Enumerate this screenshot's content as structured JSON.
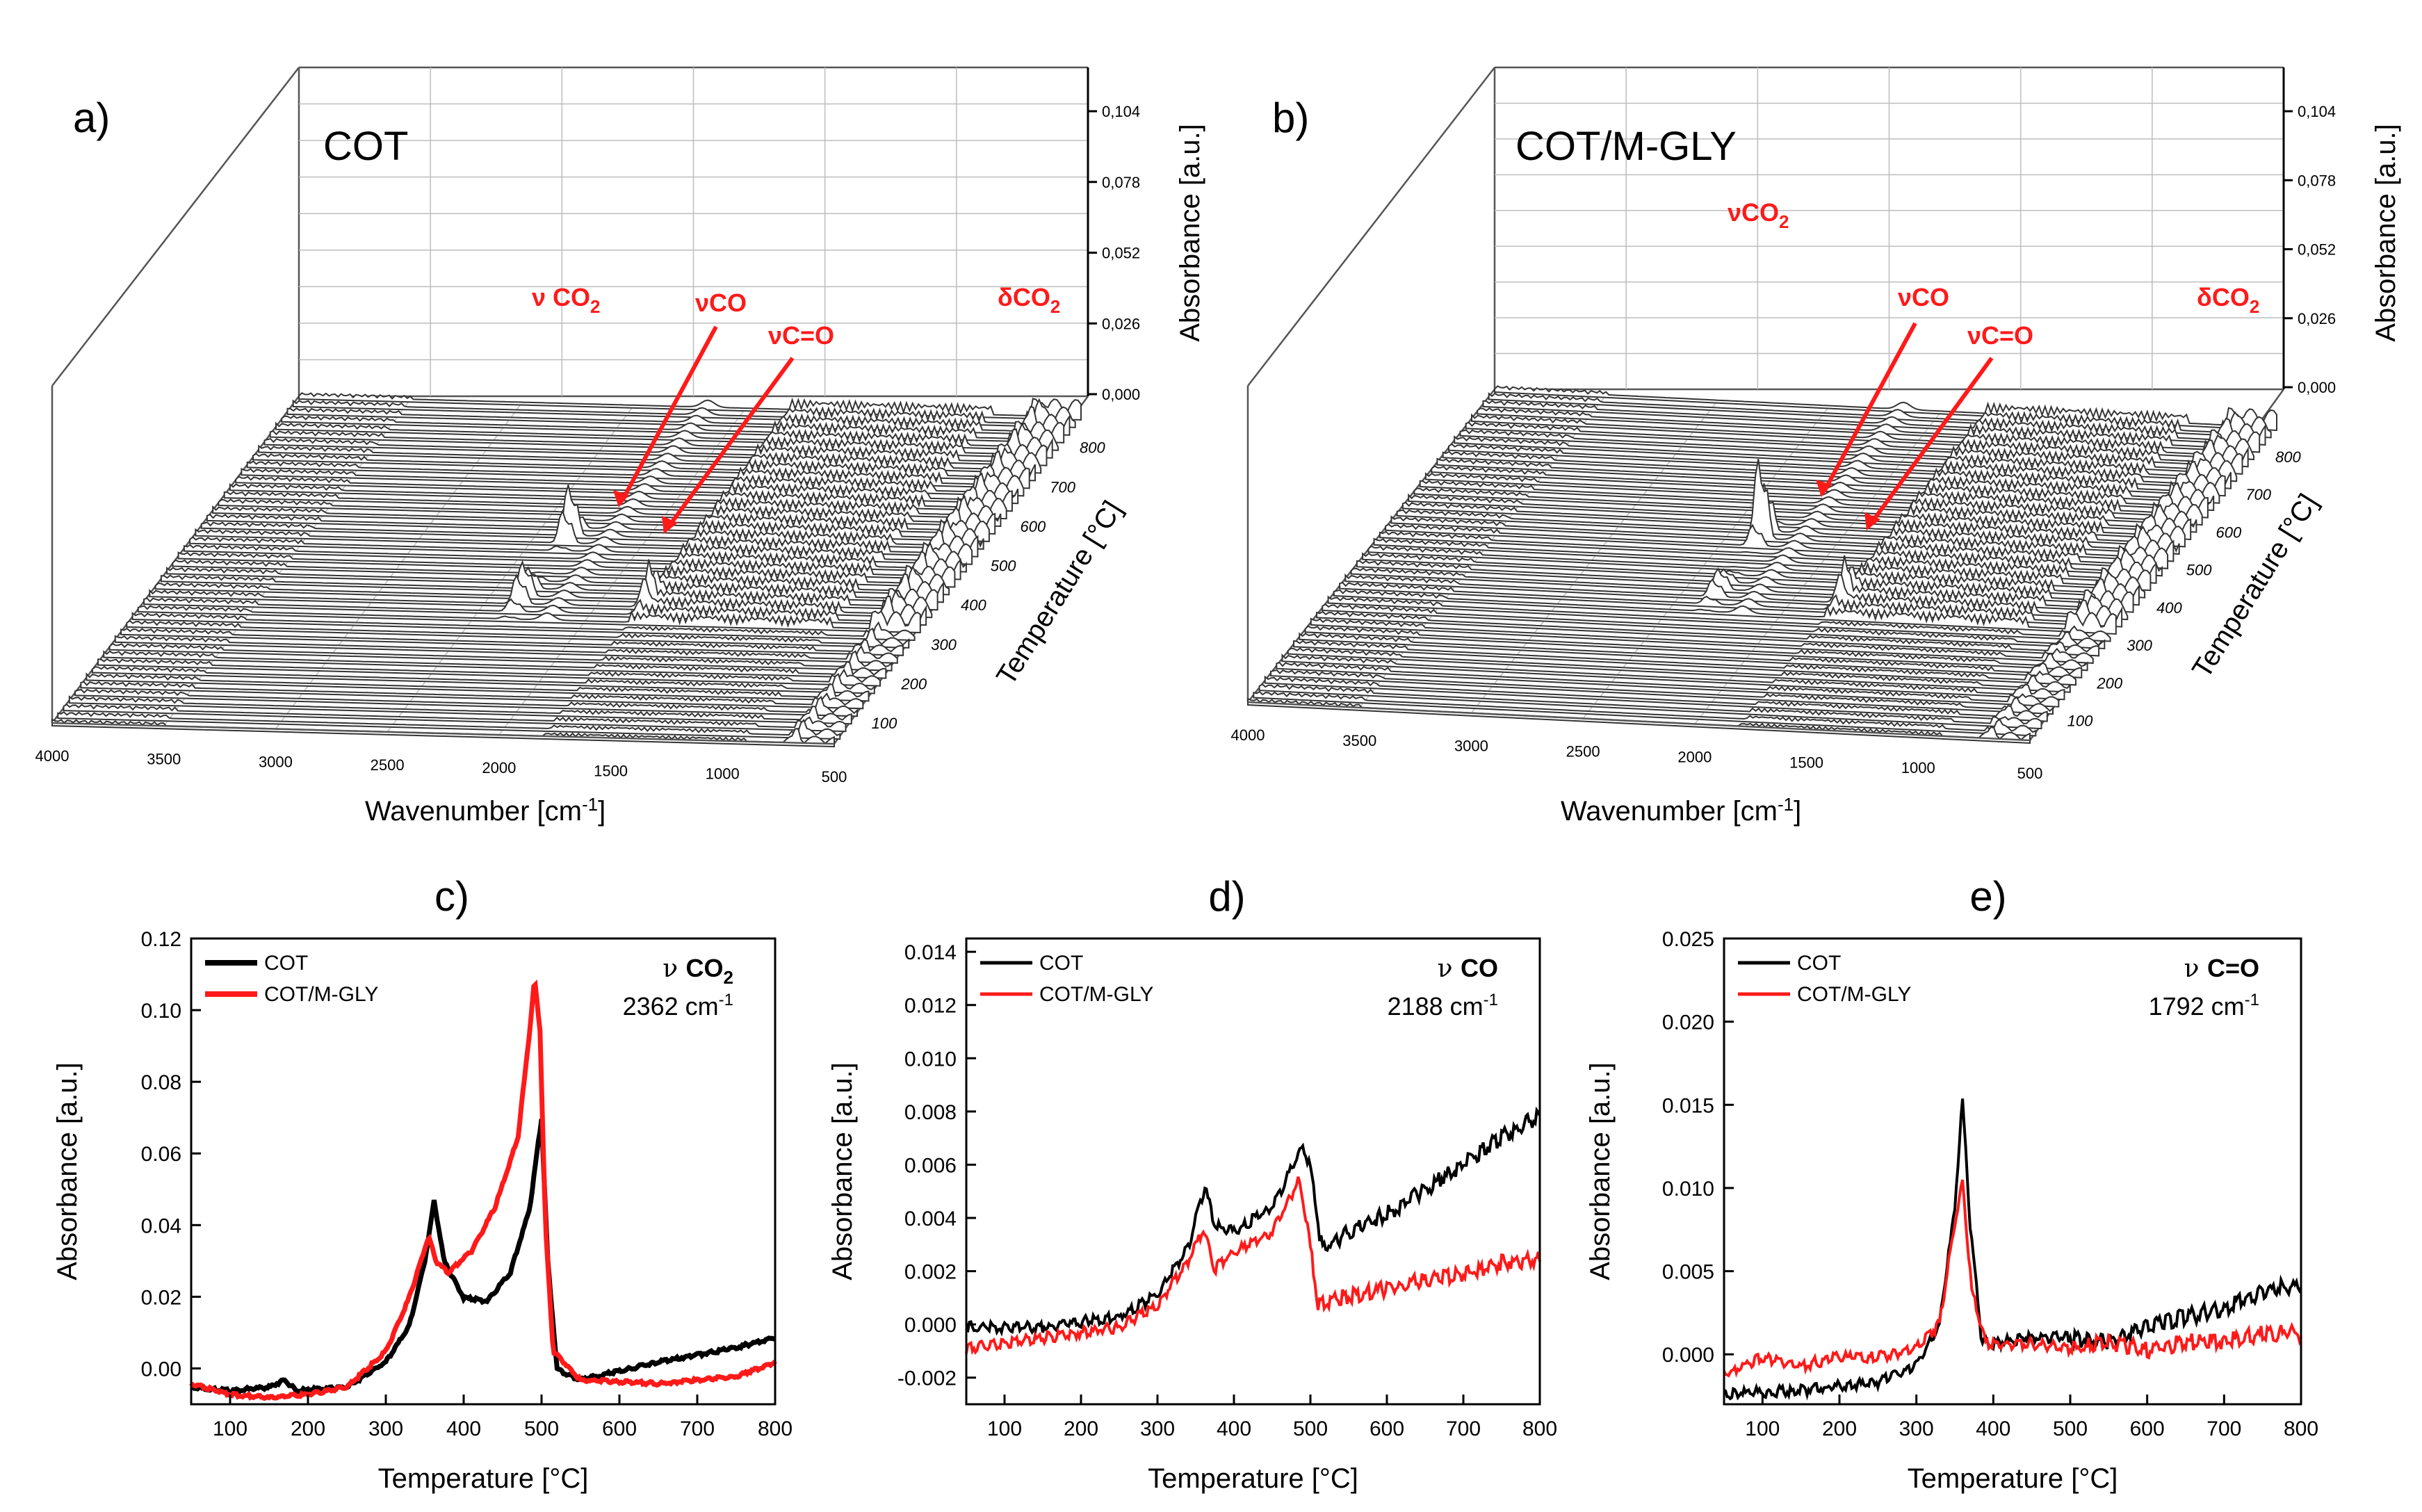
{
  "figure": {
    "panel_a": {
      "label": "a)",
      "sample": "COT",
      "xlabel": "Wavenumber [cm",
      "xlabel_sup": "-1",
      "xlabel_end": "]",
      "ylabel": "Temperature [°C]",
      "zlabel": "Absorbance [a.u.]",
      "x_ticks": [
        "4000",
        "3500",
        "3000",
        "2500",
        "2000",
        "1500",
        "1000",
        "500"
      ],
      "t_ticks": [
        "100",
        "200",
        "300",
        "400",
        "500",
        "600",
        "700",
        "800"
      ],
      "z_ticks": [
        "0,000",
        "0,026",
        "0,052",
        "0,078",
        "0,104"
      ],
      "annotations": {
        "co2": "ν CO",
        "co2_sub": "2",
        "co": "νCO",
        "cdo": "νC=O",
        "dco2": "δCO",
        "dco2_sub": "2"
      }
    },
    "panel_b": {
      "label": "b)",
      "sample": "COT/M-GLY",
      "xlabel": "Wavenumber [cm",
      "xlabel_sup": "-1",
      "xlabel_end": "]",
      "ylabel": "Temperature [°C]",
      "zlabel": "Absorbance [a.u.]",
      "x_ticks": [
        "4000",
        "3500",
        "3000",
        "2500",
        "2000",
        "1500",
        "1000",
        "500"
      ],
      "t_ticks": [
        "100",
        "200",
        "300",
        "400",
        "500",
        "600",
        "700",
        "800"
      ],
      "z_ticks": [
        "0,000",
        "0,026",
        "0,052",
        "0,078",
        "0,104"
      ],
      "annotations": {
        "co2": "νCO",
        "co2_sub": "2",
        "co": "νCO",
        "cdo": "νC=O",
        "dco2": "δCO",
        "dco2_sub": "2"
      }
    }
  },
  "chart_data": [
    {
      "type": "line",
      "panel": "c)",
      "xlabel": "Temperature [°C]",
      "ylabel": "Absorbance [a.u.]",
      "xlim": [
        50,
        800
      ],
      "ylim": [
        -0.01,
        0.12
      ],
      "x_ticks": [
        "100",
        "200",
        "300",
        "400",
        "500",
        "600",
        "700",
        "800"
      ],
      "y_ticks": [
        "0.00",
        "0.02",
        "0.04",
        "0.06",
        "0.08",
        "0.10",
        "0.12"
      ],
      "annotation_mode": "ν",
      "annotation_species": "CO",
      "annotation_sub": "2",
      "annotation_wavenumber": "2362 cm",
      "annotation_sup": "-1",
      "series": [
        {
          "name": "COT",
          "color": "#000000",
          "points": [
            [
              50,
              -0.005
            ],
            [
              100,
              -0.006
            ],
            [
              150,
              -0.005
            ],
            [
              170,
              -0.003
            ],
            [
              185,
              -0.006
            ],
            [
              250,
              -0.005
            ],
            [
              300,
              0.002
            ],
            [
              330,
              0.012
            ],
            [
              350,
              0.03
            ],
            [
              362,
              0.047
            ],
            [
              375,
              0.03
            ],
            [
              400,
              0.02
            ],
            [
              430,
              0.019
            ],
            [
              460,
              0.027
            ],
            [
              485,
              0.045
            ],
            [
              500,
              0.07
            ],
            [
              508,
              0.03
            ],
            [
              520,
              0.0
            ],
            [
              550,
              -0.003
            ],
            [
              650,
              0.002
            ],
            [
              750,
              0.006
            ],
            [
              800,
              0.009
            ]
          ]
        },
        {
          "name": "COT/M-GLY",
          "color": "#ff1a1a",
          "points": [
            [
              50,
              -0.004
            ],
            [
              100,
              -0.007
            ],
            [
              150,
              -0.008
            ],
            [
              200,
              -0.007
            ],
            [
              250,
              -0.005
            ],
            [
              300,
              0.005
            ],
            [
              330,
              0.02
            ],
            [
              355,
              0.037
            ],
            [
              365,
              0.03
            ],
            [
              380,
              0.027
            ],
            [
              410,
              0.033
            ],
            [
              440,
              0.045
            ],
            [
              470,
              0.065
            ],
            [
              485,
              0.095
            ],
            [
              491,
              0.109
            ],
            [
              498,
              0.095
            ],
            [
              505,
              0.04
            ],
            [
              515,
              0.005
            ],
            [
              550,
              -0.003
            ],
            [
              650,
              -0.004
            ],
            [
              750,
              -0.002
            ],
            [
              800,
              0.002
            ]
          ]
        }
      ]
    },
    {
      "type": "line",
      "panel": "d)",
      "xlabel": "Temperature [°C]",
      "ylabel": "Absorbance [a.u.]",
      "xlim": [
        50,
        800
      ],
      "ylim": [
        -0.003,
        0.0145
      ],
      "x_ticks": [
        "100",
        "200",
        "300",
        "400",
        "500",
        "600",
        "700",
        "800"
      ],
      "y_ticks": [
        "-0.002",
        "0.000",
        "0.002",
        "0.004",
        "0.006",
        "0.008",
        "0.010",
        "0.012",
        "0.014"
      ],
      "annotation_mode": "ν",
      "annotation_species": "CO",
      "annotation_sub": "",
      "annotation_wavenumber": "2188 cm",
      "annotation_sup": "-1",
      "series": [
        {
          "name": "COT",
          "color": "#000000",
          "points": [
            [
              50,
              0.0
            ],
            [
              150,
              0.0
            ],
            [
              250,
              0.0004
            ],
            [
              300,
              0.0012
            ],
            [
              340,
              0.003
            ],
            [
              362,
              0.0053
            ],
            [
              375,
              0.0038
            ],
            [
              400,
              0.0036
            ],
            [
              450,
              0.0045
            ],
            [
              490,
              0.0068
            ],
            [
              500,
              0.006
            ],
            [
              515,
              0.003
            ],
            [
              550,
              0.0036
            ],
            [
              600,
              0.0043
            ],
            [
              650,
              0.0052
            ],
            [
              700,
              0.0062
            ],
            [
              750,
              0.0072
            ],
            [
              800,
              0.008
            ]
          ]
        },
        {
          "name": "COT/M-GLY",
          "color": "#ff1a1a",
          "points": [
            [
              50,
              -0.0008
            ],
            [
              150,
              -0.0004
            ],
            [
              250,
              0.0
            ],
            [
              300,
              0.0008
            ],
            [
              340,
              0.0025
            ],
            [
              360,
              0.0037
            ],
            [
              375,
              0.0022
            ],
            [
              400,
              0.0028
            ],
            [
              450,
              0.0036
            ],
            [
              485,
              0.0055
            ],
            [
              495,
              0.004
            ],
            [
              510,
              0.001
            ],
            [
              550,
              0.0012
            ],
            [
              600,
              0.0015
            ],
            [
              650,
              0.0018
            ],
            [
              700,
              0.002
            ],
            [
              750,
              0.0025
            ],
            [
              800,
              0.0026
            ]
          ]
        }
      ]
    },
    {
      "type": "line",
      "panel": "e)",
      "xlabel": "Temperature [°C]",
      "ylabel": "Absorbance [a.u.]",
      "xlim": [
        50,
        800
      ],
      "ylim": [
        -0.003,
        0.025
      ],
      "x_ticks": [
        "100",
        "200",
        "300",
        "400",
        "500",
        "600",
        "700",
        "800"
      ],
      "y_ticks": [
        "0.000",
        "0.005",
        "0.010",
        "0.015",
        "0.020",
        "0.025"
      ],
      "annotation_mode": "ν",
      "annotation_species": "C=O",
      "annotation_sub": "",
      "annotation_wavenumber": "1792 cm",
      "annotation_sup": "-1",
      "series": [
        {
          "name": "COT",
          "color": "#000000",
          "points": [
            [
              50,
              -0.0022
            ],
            [
              150,
              -0.002
            ],
            [
              250,
              -0.0015
            ],
            [
              300,
              -0.0005
            ],
            [
              330,
              0.002
            ],
            [
              350,
              0.009
            ],
            [
              360,
              0.0155
            ],
            [
              370,
              0.008
            ],
            [
              385,
              0.001
            ],
            [
              400,
              0.0008
            ],
            [
              450,
              0.0012
            ],
            [
              500,
              0.0012
            ],
            [
              550,
              0.001
            ],
            [
              600,
              0.002
            ],
            [
              650,
              0.0025
            ],
            [
              700,
              0.003
            ],
            [
              750,
              0.004
            ],
            [
              800,
              0.0045
            ]
          ]
        },
        {
          "name": "COT/M-GLY",
          "color": "#ff1a1a",
          "points": [
            [
              50,
              -0.001
            ],
            [
              100,
              0.0
            ],
            [
              150,
              -0.0005
            ],
            [
              200,
              0.0
            ],
            [
              250,
              0.0
            ],
            [
              300,
              0.0005
            ],
            [
              330,
              0.002
            ],
            [
              350,
              0.008
            ],
            [
              360,
              0.0105
            ],
            [
              372,
              0.004
            ],
            [
              390,
              0.0008
            ],
            [
              450,
              0.0008
            ],
            [
              500,
              0.0005
            ],
            [
              550,
              0.001
            ],
            [
              600,
              0.0005
            ],
            [
              650,
              0.001
            ],
            [
              700,
              0.001
            ],
            [
              750,
              0.0015
            ],
            [
              800,
              0.0015
            ]
          ]
        }
      ]
    }
  ]
}
